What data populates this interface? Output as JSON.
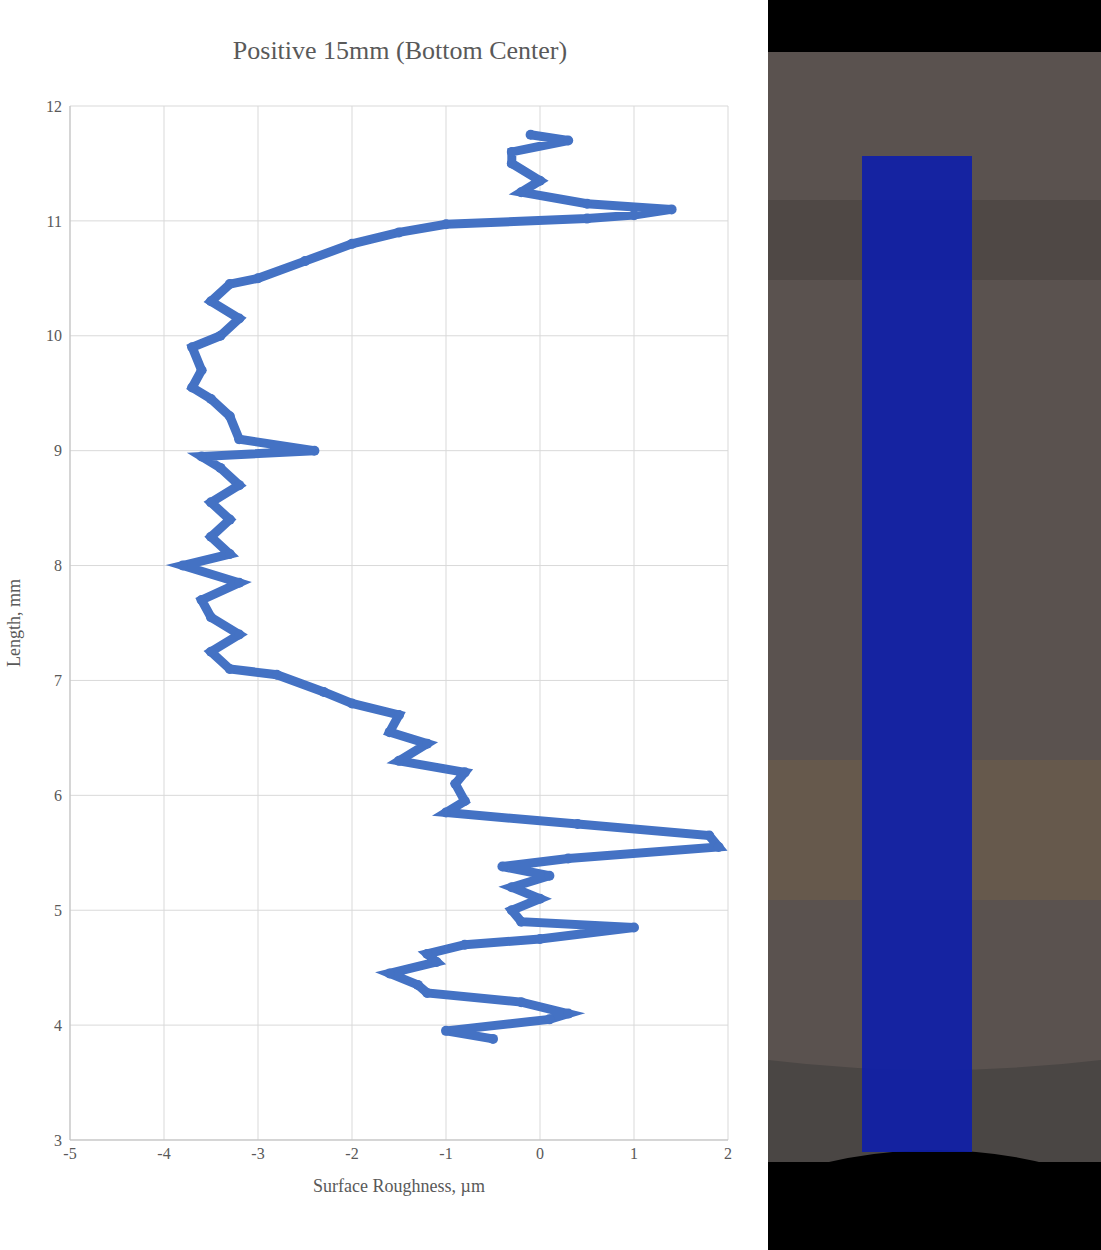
{
  "chart_data": {
    "type": "line",
    "title": "Positive 15mm (Bottom Center)",
    "x_label": "Surface Roughness, µm",
    "y_label": "Length, mm",
    "color": "#4472c4",
    "grid": true,
    "xlim": [
      -5,
      2
    ],
    "xticks": [
      -5,
      -4,
      -3,
      -2,
      -1,
      0,
      1,
      2
    ],
    "ylim": [
      3,
      12
    ],
    "yticks": [
      3,
      4,
      5,
      6,
      7,
      8,
      9,
      10,
      11,
      12
    ],
    "x": [
      -0.5,
      -1.0,
      0.1,
      0.3,
      -0.2,
      -1.2,
      -1.3,
      -1.6,
      -1.1,
      -1.2,
      -0.8,
      0.0,
      1.0,
      -0.2,
      -0.3,
      0.0,
      -0.3,
      0.1,
      -0.4,
      0.3,
      1.9,
      1.8,
      0.4,
      -1.0,
      -0.8,
      -0.9,
      -0.8,
      -1.5,
      -1.2,
      -1.6,
      -1.5,
      -2.0,
      -2.3,
      -2.8,
      -3.3,
      -3.5,
      -3.2,
      -3.5,
      -3.6,
      -3.2,
      -3.8,
      -3.3,
      -3.5,
      -3.3,
      -3.5,
      -3.2,
      -3.4,
      -3.6,
      -2.4,
      -3.2,
      -3.3,
      -3.5,
      -3.7,
      -3.6,
      -3.7,
      -3.4,
      -3.2,
      -3.5,
      -3.3,
      -3.0,
      -2.5,
      -2.0,
      -1.5,
      -1.0,
      0.5,
      1.0,
      1.4,
      0.5,
      -0.2,
      0.0,
      -0.3,
      -0.3,
      0.3,
      -0.1
    ],
    "y": [
      3.88,
      3.95,
      4.05,
      4.1,
      4.2,
      4.28,
      4.35,
      4.45,
      4.55,
      4.62,
      4.7,
      4.75,
      4.85,
      4.9,
      5.0,
      5.1,
      5.2,
      5.3,
      5.38,
      5.45,
      5.55,
      5.65,
      5.75,
      5.85,
      5.95,
      6.1,
      6.2,
      6.3,
      6.45,
      6.55,
      6.7,
      6.8,
      6.9,
      7.05,
      7.1,
      7.25,
      7.4,
      7.55,
      7.7,
      7.85,
      8.0,
      8.1,
      8.25,
      8.4,
      8.55,
      8.7,
      8.85,
      8.95,
      9.0,
      9.1,
      9.3,
      9.45,
      9.55,
      9.7,
      9.9,
      10.0,
      10.15,
      10.3,
      10.45,
      10.5,
      10.65,
      10.8,
      10.9,
      10.97,
      11.02,
      11.05,
      11.1,
      11.15,
      11.25,
      11.35,
      11.5,
      11.6,
      11.7,
      11.75
    ]
  }
}
